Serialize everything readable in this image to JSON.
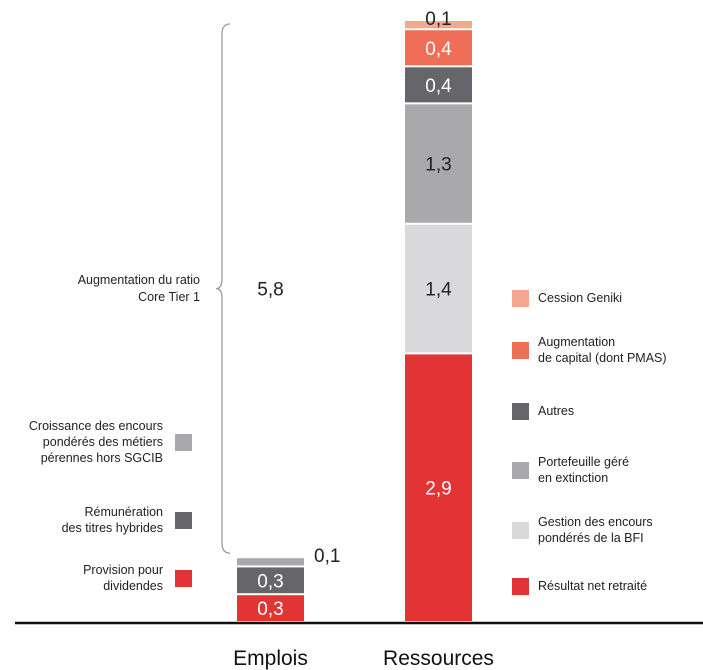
{
  "chart_data": {
    "type": "bar",
    "stacked": true,
    "categories": [
      "Emplois",
      "Ressources"
    ],
    "series": [
      {
        "name": "Provision pour dividendes",
        "stack": "Emplois",
        "value": 0.3,
        "label": "0,3",
        "color": "#e23434"
      },
      {
        "name": "Rémunération des titres hybrides",
        "stack": "Emplois",
        "value": 0.3,
        "label": "0,3",
        "color": "#66656a"
      },
      {
        "name": "Croissance des encours pondérés des métiers pérennes hors SGCIB",
        "stack": "Emplois",
        "value": 0.1,
        "label": "0,1",
        "color": "#a9a9ac"
      },
      {
        "name": "Augmentation du ratio Core Tier 1",
        "stack": "Emplois",
        "value": 5.8,
        "label": "5,8",
        "color": "none"
      },
      {
        "name": "Résultat net retraité",
        "stack": "Ressources",
        "value": 2.9,
        "label": "2,9",
        "color": "#e23434"
      },
      {
        "name": "Gestion des encours pondérés de la BFI",
        "stack": "Ressources",
        "value": 1.4,
        "label": "1,4",
        "color": "#d9d9db"
      },
      {
        "name": "Portefeuille géré en extinction",
        "stack": "Ressources",
        "value": 1.3,
        "label": "1,3",
        "color": "#a9a9ac"
      },
      {
        "name": "Autres",
        "stack": "Ressources",
        "value": 0.4,
        "label": "0,4",
        "color": "#66656a"
      },
      {
        "name": "Augmentation de capital (dont PMAS)",
        "stack": "Ressources",
        "value": 0.4,
        "label": "0,4",
        "color": "#ee6e57"
      },
      {
        "name": "Cession Geniki",
        "stack": "Ressources",
        "value": 0.1,
        "label": "0,1",
        "color": "#f2a990"
      }
    ],
    "left_legend": [
      {
        "lines": [
          "Croissance des encours",
          "pondérés des métiers",
          "pérennes hors SGCIB"
        ],
        "color": "#a9a9ac"
      },
      {
        "lines": [
          "Rémunération",
          "des titres hybrides"
        ],
        "color": "#66656a"
      },
      {
        "lines": [
          "Provision pour",
          "dividendes"
        ],
        "color": "#e23434"
      }
    ],
    "right_legend": [
      {
        "lines": [
          "Cession Geniki"
        ],
        "color": "#f2a990"
      },
      {
        "lines": [
          "Augmentation",
          "de capital (dont PMAS)"
        ],
        "color": "#ee6e57"
      },
      {
        "lines": [
          "Autres"
        ],
        "color": "#66656a"
      },
      {
        "lines": [
          "Portefeuille géré",
          "en extinction"
        ],
        "color": "#a9a9ac"
      },
      {
        "lines": [
          "Gestion des encours",
          "pondérés de la BFI"
        ],
        "color": "#d9d9db"
      },
      {
        "lines": [
          "Résultat net retraité"
        ],
        "color": "#e23434"
      }
    ],
    "brace_label": [
      "Augmentation du ratio",
      "Core Tier 1"
    ],
    "ylim": [
      0,
      6.5
    ],
    "grid": false,
    "legend": "left-and-right"
  }
}
